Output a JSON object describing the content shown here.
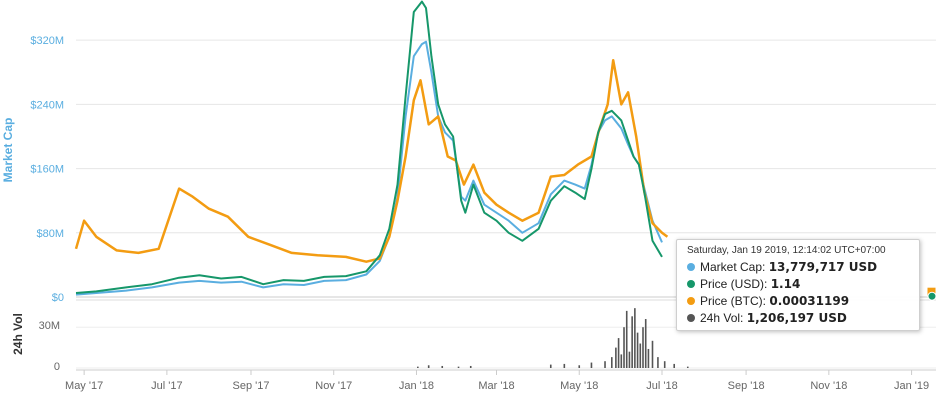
{
  "chart_data": {
    "type": "line",
    "ylabel": "Market Cap",
    "vol_label": "24h Vol",
    "y_ticks": [
      "$0",
      "$80M",
      "$160M",
      "$240M",
      "$320M"
    ],
    "y_tick_values": [
      0,
      80,
      160,
      240,
      320
    ],
    "ylim": [
      0,
      370
    ],
    "vol_ticks": [
      "0",
      "30M"
    ],
    "vol_tick_values": [
      0,
      30
    ],
    "vol_ylim": [
      0,
      50
    ],
    "x_ticks": [
      "May '17",
      "Jul '17",
      "Sep '17",
      "Nov '17",
      "Jan '18",
      "Mar '18",
      "May '18",
      "Jul '18",
      "Sep '18",
      "Nov '18",
      "Jan '19"
    ],
    "x_tick_dates": [
      "2017-05-01",
      "2017-07-01",
      "2017-09-01",
      "2017-11-01",
      "2018-01-01",
      "2018-03-01",
      "2018-05-01",
      "2018-07-01",
      "2018-09-01",
      "2018-11-01",
      "2019-01-01"
    ],
    "x_range": [
      "2017-04-25",
      "2019-01-19"
    ],
    "series": [
      {
        "name": "Market Cap",
        "color": "#5aaee0",
        "x": [
          "2017-04-25",
          "2017-05-10",
          "2017-06-01",
          "2017-06-20",
          "2017-07-10",
          "2017-07-25",
          "2017-08-10",
          "2017-08-25",
          "2017-09-10",
          "2017-09-25",
          "2017-10-10",
          "2017-10-25",
          "2017-11-10",
          "2017-11-25",
          "2017-12-05",
          "2017-12-12",
          "2017-12-18",
          "2017-12-24",
          "2017-12-30",
          "2018-01-05",
          "2018-01-08",
          "2018-01-12",
          "2018-01-17",
          "2018-01-22",
          "2018-01-28",
          "2018-02-03",
          "2018-02-06",
          "2018-02-12",
          "2018-02-20",
          "2018-03-01",
          "2018-03-10",
          "2018-03-20",
          "2018-04-01",
          "2018-04-10",
          "2018-04-20",
          "2018-04-28",
          "2018-05-05",
          "2018-05-10",
          "2018-05-15",
          "2018-05-20",
          "2018-05-25",
          "2018-06-01",
          "2018-06-06",
          "2018-06-10",
          "2018-06-14",
          "2018-06-18",
          "2018-06-24",
          "2018-07-01"
        ],
        "y": [
          3,
          5,
          8,
          12,
          18,
          20,
          18,
          19,
          12,
          16,
          15,
          20,
          21,
          28,
          45,
          75,
          125,
          225,
          300,
          315,
          318,
          280,
          225,
          205,
          195,
          125,
          120,
          145,
          115,
          105,
          95,
          80,
          92,
          128,
          145,
          140,
          135,
          165,
          205,
          220,
          225,
          210,
          190,
          175,
          165,
          135,
          95,
          68
        ]
      },
      {
        "name": "Price (USD)",
        "color": "#16976a",
        "x": [
          "2017-04-25",
          "2017-05-10",
          "2017-06-01",
          "2017-06-20",
          "2017-07-10",
          "2017-07-25",
          "2017-08-10",
          "2017-08-25",
          "2017-09-10",
          "2017-09-25",
          "2017-10-10",
          "2017-10-25",
          "2017-11-10",
          "2017-11-25",
          "2017-12-05",
          "2017-12-12",
          "2017-12-18",
          "2017-12-24",
          "2017-12-30",
          "2018-01-05",
          "2018-01-08",
          "2018-01-12",
          "2018-01-17",
          "2018-01-22",
          "2018-01-28",
          "2018-02-03",
          "2018-02-06",
          "2018-02-12",
          "2018-02-20",
          "2018-03-01",
          "2018-03-10",
          "2018-03-20",
          "2018-04-01",
          "2018-04-10",
          "2018-04-20",
          "2018-04-28",
          "2018-05-05",
          "2018-05-10",
          "2018-05-15",
          "2018-05-20",
          "2018-05-25",
          "2018-06-01",
          "2018-06-06",
          "2018-06-10",
          "2018-06-14",
          "2018-06-18",
          "2018-06-24",
          "2018-07-01"
        ],
        "y": [
          5,
          7,
          12,
          16,
          24,
          27,
          23,
          25,
          16,
          21,
          20,
          25,
          26,
          32,
          52,
          85,
          140,
          250,
          355,
          368,
          360,
          300,
          240,
          215,
          200,
          120,
          105,
          140,
          105,
          95,
          80,
          70,
          85,
          120,
          138,
          130,
          122,
          160,
          205,
          228,
          232,
          220,
          195,
          175,
          165,
          130,
          70,
          50
        ]
      },
      {
        "name": "Price (BTC)",
        "color": "#f39c12",
        "x": [
          "2017-04-25",
          "2017-05-01",
          "2017-05-10",
          "2017-05-25",
          "2017-06-10",
          "2017-06-25",
          "2017-07-10",
          "2017-07-20",
          "2017-08-01",
          "2017-08-15",
          "2017-08-30",
          "2017-09-15",
          "2017-10-01",
          "2017-10-20",
          "2017-11-10",
          "2017-11-25",
          "2017-12-05",
          "2017-12-12",
          "2017-12-18",
          "2017-12-24",
          "2017-12-30",
          "2018-01-04",
          "2018-01-10",
          "2018-01-17",
          "2018-01-24",
          "2018-01-30",
          "2018-02-05",
          "2018-02-12",
          "2018-02-20",
          "2018-03-01",
          "2018-03-10",
          "2018-03-20",
          "2018-04-01",
          "2018-04-10",
          "2018-04-20",
          "2018-04-30",
          "2018-05-10",
          "2018-05-16",
          "2018-05-22",
          "2018-05-26",
          "2018-06-01",
          "2018-06-06",
          "2018-06-12",
          "2018-06-18",
          "2018-06-24",
          "2018-07-01",
          "2018-07-05"
        ],
        "y": [
          60,
          95,
          75,
          58,
          55,
          60,
          135,
          125,
          110,
          100,
          75,
          65,
          55,
          52,
          50,
          44,
          48,
          75,
          120,
          175,
          245,
          270,
          215,
          225,
          175,
          170,
          140,
          165,
          130,
          115,
          105,
          95,
          105,
          150,
          152,
          165,
          175,
          210,
          240,
          295,
          240,
          255,
          200,
          130,
          92,
          80,
          75
        ]
      }
    ],
    "volume": {
      "name": "24h Vol",
      "color": "#555555",
      "x": [
        "2018-01-02",
        "2018-01-10",
        "2018-01-20",
        "2018-02-01",
        "2018-02-10",
        "2018-04-10",
        "2018-04-20",
        "2018-05-01",
        "2018-05-10",
        "2018-05-20",
        "2018-05-25",
        "2018-05-28",
        "2018-05-30",
        "2018-06-01",
        "2018-06-03",
        "2018-06-05",
        "2018-06-07",
        "2018-06-09",
        "2018-06-11",
        "2018-06-13",
        "2018-06-15",
        "2018-06-17",
        "2018-06-19",
        "2018-06-21",
        "2018-06-24",
        "2018-06-28",
        "2018-07-03",
        "2018-07-10",
        "2018-07-20"
      ],
      "y": [
        1,
        2,
        1.5,
        1,
        1.5,
        2.5,
        3,
        2,
        4,
        5,
        8,
        15,
        22,
        10,
        30,
        42,
        12,
        38,
        44,
        26,
        18,
        30,
        36,
        14,
        20,
        8,
        5,
        3,
        1
      ]
    },
    "tooltip": {
      "date": "Saturday, Jan 19 2019, 12:14:02 UTC+07:00",
      "rows": [
        {
          "label": "Market Cap:",
          "value": "13,779,717 USD",
          "color": "#5aaee0"
        },
        {
          "label": "Price (USD):",
          "value": "1.14",
          "color": "#16976a"
        },
        {
          "label": "Price (BTC):",
          "value": "0.00031199",
          "color": "#f39c12"
        },
        {
          "label": "24h Vol:",
          "value": "1,206,197 USD",
          "color": "#555555"
        }
      ]
    }
  }
}
